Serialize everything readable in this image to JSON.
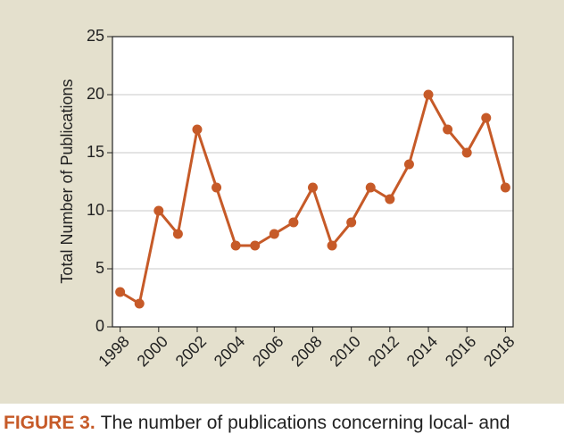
{
  "chart_data": {
    "type": "line",
    "x": [
      1998,
      1999,
      2000,
      2001,
      2002,
      2003,
      2004,
      2005,
      2006,
      2007,
      2008,
      2009,
      2010,
      2011,
      2012,
      2013,
      2014,
      2015,
      2016,
      2017,
      2018
    ],
    "series": [
      {
        "name": "Publications",
        "color": "#c65a28",
        "values": [
          3,
          2,
          10,
          8,
          17,
          12,
          7,
          7,
          8,
          9,
          12,
          7,
          9,
          12,
          11,
          14,
          20,
          17,
          15,
          18,
          12
        ]
      }
    ],
    "y_label": "Total Number of Publications",
    "xlim": [
      1997.6,
      2018.4
    ],
    "xticks": [
      1998,
      2000,
      2002,
      2004,
      2006,
      2008,
      2010,
      2012,
      2014,
      2016,
      2018
    ],
    "ylim": [
      0,
      25
    ],
    "yticks": [
      0,
      5,
      10,
      15,
      20,
      25
    ],
    "grid": true
  },
  "caption": {
    "label": "FIGURE 3.",
    "text": "The number of publications concerning local- and"
  }
}
